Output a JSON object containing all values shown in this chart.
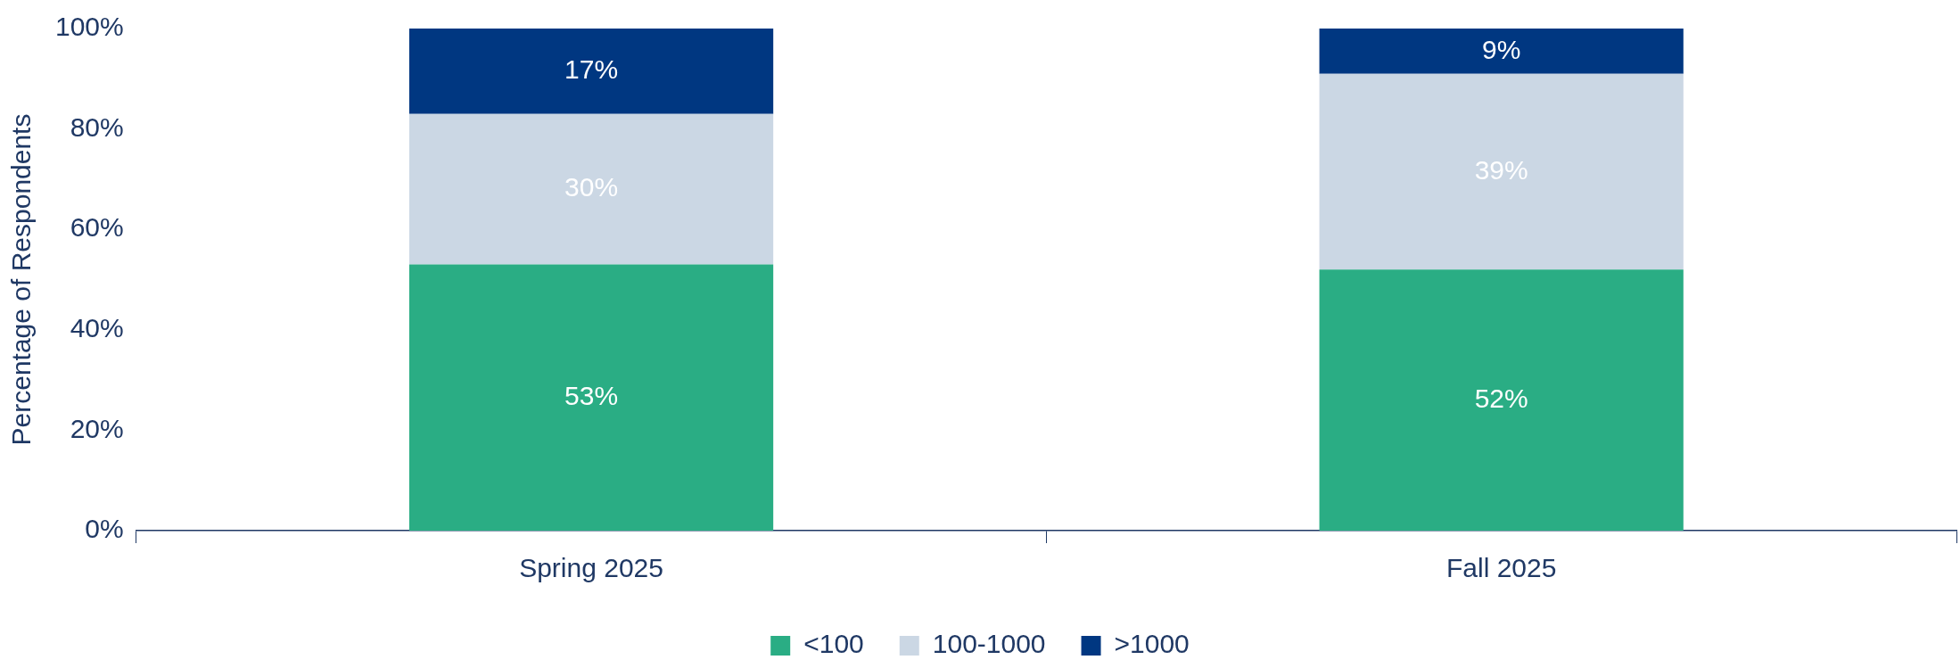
{
  "chart_data": {
    "type": "bar",
    "stacked": true,
    "ylabel": "Percentage of Respondents",
    "categories": [
      "Spring 2025",
      "Fall 2025"
    ],
    "series": [
      {
        "name": "<100",
        "color": "#2aad84",
        "values": [
          53,
          52
        ],
        "value_labels": [
          "53%",
          "52%"
        ]
      },
      {
        "name": "100-1000",
        "color": "#cbd7e4",
        "values": [
          30,
          39
        ],
        "value_labels": [
          "30%",
          "39%"
        ]
      },
      {
        "name": ">1000",
        "color": "#003781",
        "values": [
          17,
          9
        ],
        "value_labels": [
          "17%",
          "9%"
        ]
      }
    ],
    "ylim": [
      0,
      100
    ],
    "yticks": [
      {
        "value": 0,
        "label": "0%"
      },
      {
        "value": 20,
        "label": "20%"
      },
      {
        "value": 40,
        "label": "40%"
      },
      {
        "value": 60,
        "label": "60%"
      },
      {
        "value": 80,
        "label": "80%"
      },
      {
        "value": 100,
        "label": "100%"
      }
    ],
    "grid": false,
    "legend": "bottom"
  }
}
